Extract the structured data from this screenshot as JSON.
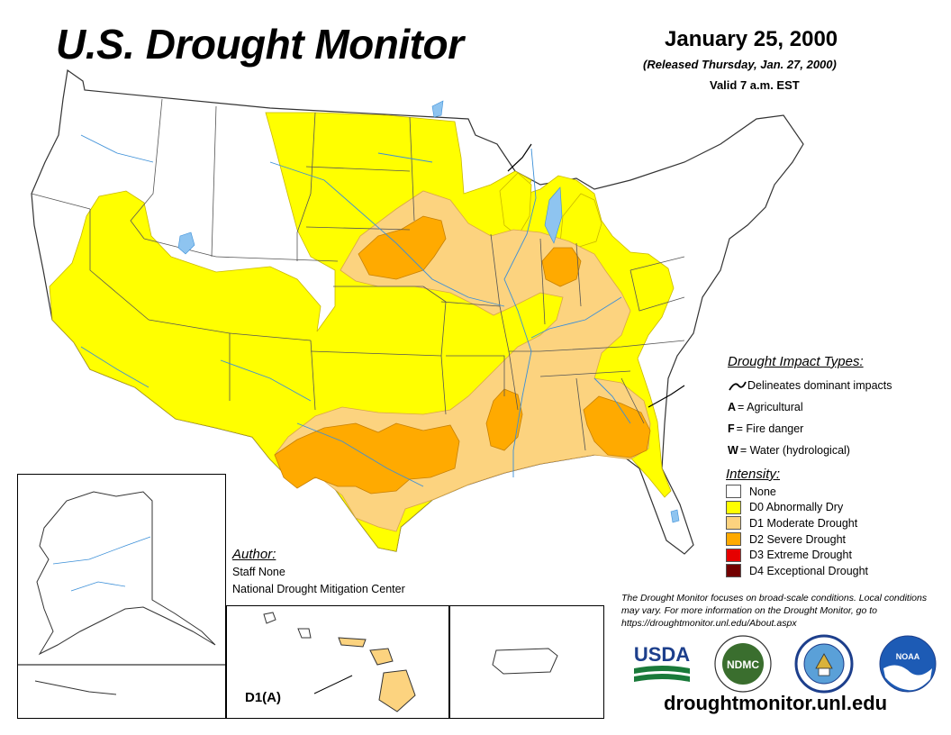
{
  "header": {
    "title": "U.S. Drought Monitor",
    "date": "January 25, 2000",
    "released": "(Released Thursday, Jan. 27, 2000)",
    "valid": "Valid 7 a.m. EST"
  },
  "impact_types": {
    "heading": "Drought Impact Types:",
    "items": [
      {
        "key": "",
        "label": "Delineates dominant impacts",
        "icon": "impact-line-icon"
      },
      {
        "key": "A",
        "label": " = Agricultural"
      },
      {
        "key": "F",
        "label": " = Fire danger"
      },
      {
        "key": "W",
        "label": "= Water (hydrological)"
      }
    ]
  },
  "intensity": {
    "heading": "Intensity:",
    "items": [
      {
        "label": "None",
        "color": "#FFFFFF"
      },
      {
        "label": "D0 Abnormally Dry",
        "color": "#FFFF00"
      },
      {
        "label": "D1 Moderate Drought",
        "color": "#FCD37F"
      },
      {
        "label": "D2 Severe Drought",
        "color": "#FFAA00"
      },
      {
        "label": "D3 Extreme Drought",
        "color": "#E60000"
      },
      {
        "label": "D4 Exceptional Drought",
        "color": "#730000"
      }
    ]
  },
  "author": {
    "heading": "Author:",
    "name": "Staff None",
    "organization": "National Drought Mitigation Center"
  },
  "disclaimer": "The Drought Monitor focuses on broad-scale conditions. Local conditions may vary. For more information on the Drought Monitor, go to https://droughtmonitor.unl.edu/About.aspx",
  "logos": {
    "usda": "USDA",
    "ndmc": "NDMC",
    "noaa": "NOAA"
  },
  "website": "droughtmonitor.unl.edu",
  "hawaii_label": "D1(A)",
  "colors": {
    "river": "#3b8fd8",
    "lake": "#8ec4f0",
    "border": "#555555"
  }
}
